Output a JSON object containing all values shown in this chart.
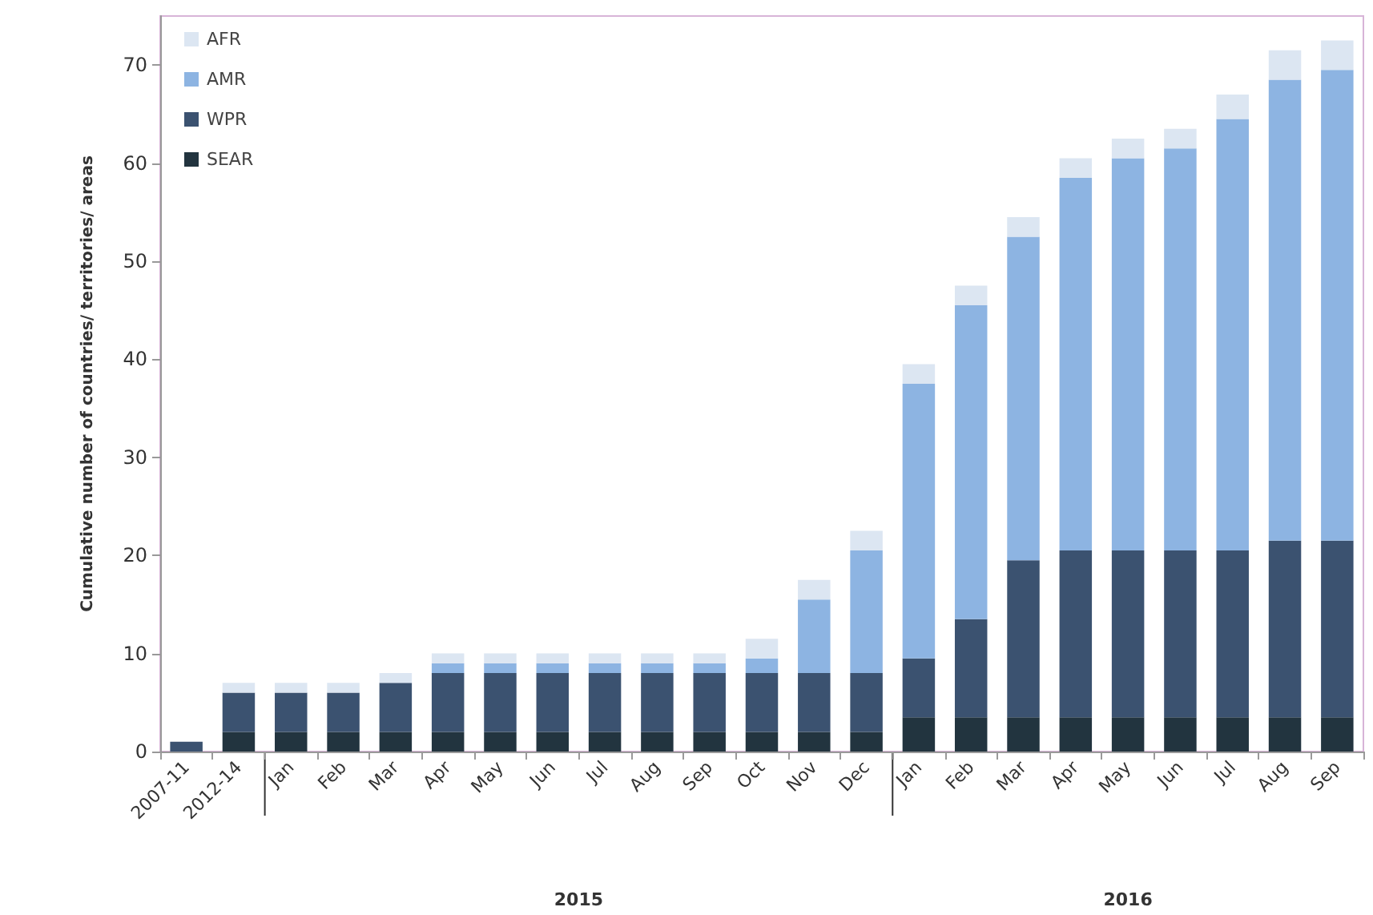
{
  "chart_data": {
    "type": "bar",
    "stacked": true,
    "ylabel": "Cumulative number of countries/ territories/ areas",
    "categories": [
      "2007-11",
      "2012-14",
      "Jan",
      "Feb",
      "Mar",
      "Apr",
      "May",
      "Jun",
      "Jul",
      "Aug",
      "Sep",
      "Oct",
      "Nov",
      "Dec",
      "Jan",
      "Feb",
      "Mar",
      "Apr",
      "May",
      "Jun",
      "Jul",
      "Aug",
      "Sep"
    ],
    "series": [
      {
        "name": "SEAR",
        "color": "#22343f",
        "values": [
          0,
          2,
          2,
          2,
          2,
          2,
          2,
          2,
          2,
          2,
          2,
          2,
          2,
          2,
          3.5,
          3.5,
          3.5,
          3.5,
          3.5,
          3.5,
          3.5,
          3.5,
          3.5
        ]
      },
      {
        "name": "WPR",
        "color": "#3b5270",
        "values": [
          1,
          4,
          4,
          4,
          5,
          6,
          6,
          6,
          6,
          6,
          6,
          6,
          6,
          6,
          6,
          10,
          16,
          17,
          17,
          17,
          17,
          18,
          18
        ]
      },
      {
        "name": "AMR",
        "color": "#8db4e2",
        "values": [
          0,
          0,
          0,
          0,
          0,
          1,
          1,
          1,
          1,
          1,
          1,
          1.5,
          7.5,
          12.5,
          28,
          32,
          33,
          38,
          40,
          41,
          44,
          47,
          48
        ]
      },
      {
        "name": "AFR",
        "color": "#dce6f2",
        "values": [
          0,
          1,
          1,
          1,
          1,
          1,
          1,
          1,
          1,
          1,
          1,
          2,
          2,
          2,
          2,
          2,
          2,
          2,
          2,
          2,
          2.5,
          3,
          3
        ]
      }
    ],
    "ylim": [
      0,
      75
    ],
    "yticks": [
      0,
      10,
      20,
      30,
      40,
      50,
      60,
      70
    ],
    "grid": false,
    "legend": "top left",
    "annotations": [
      "2015",
      "2016"
    ]
  }
}
